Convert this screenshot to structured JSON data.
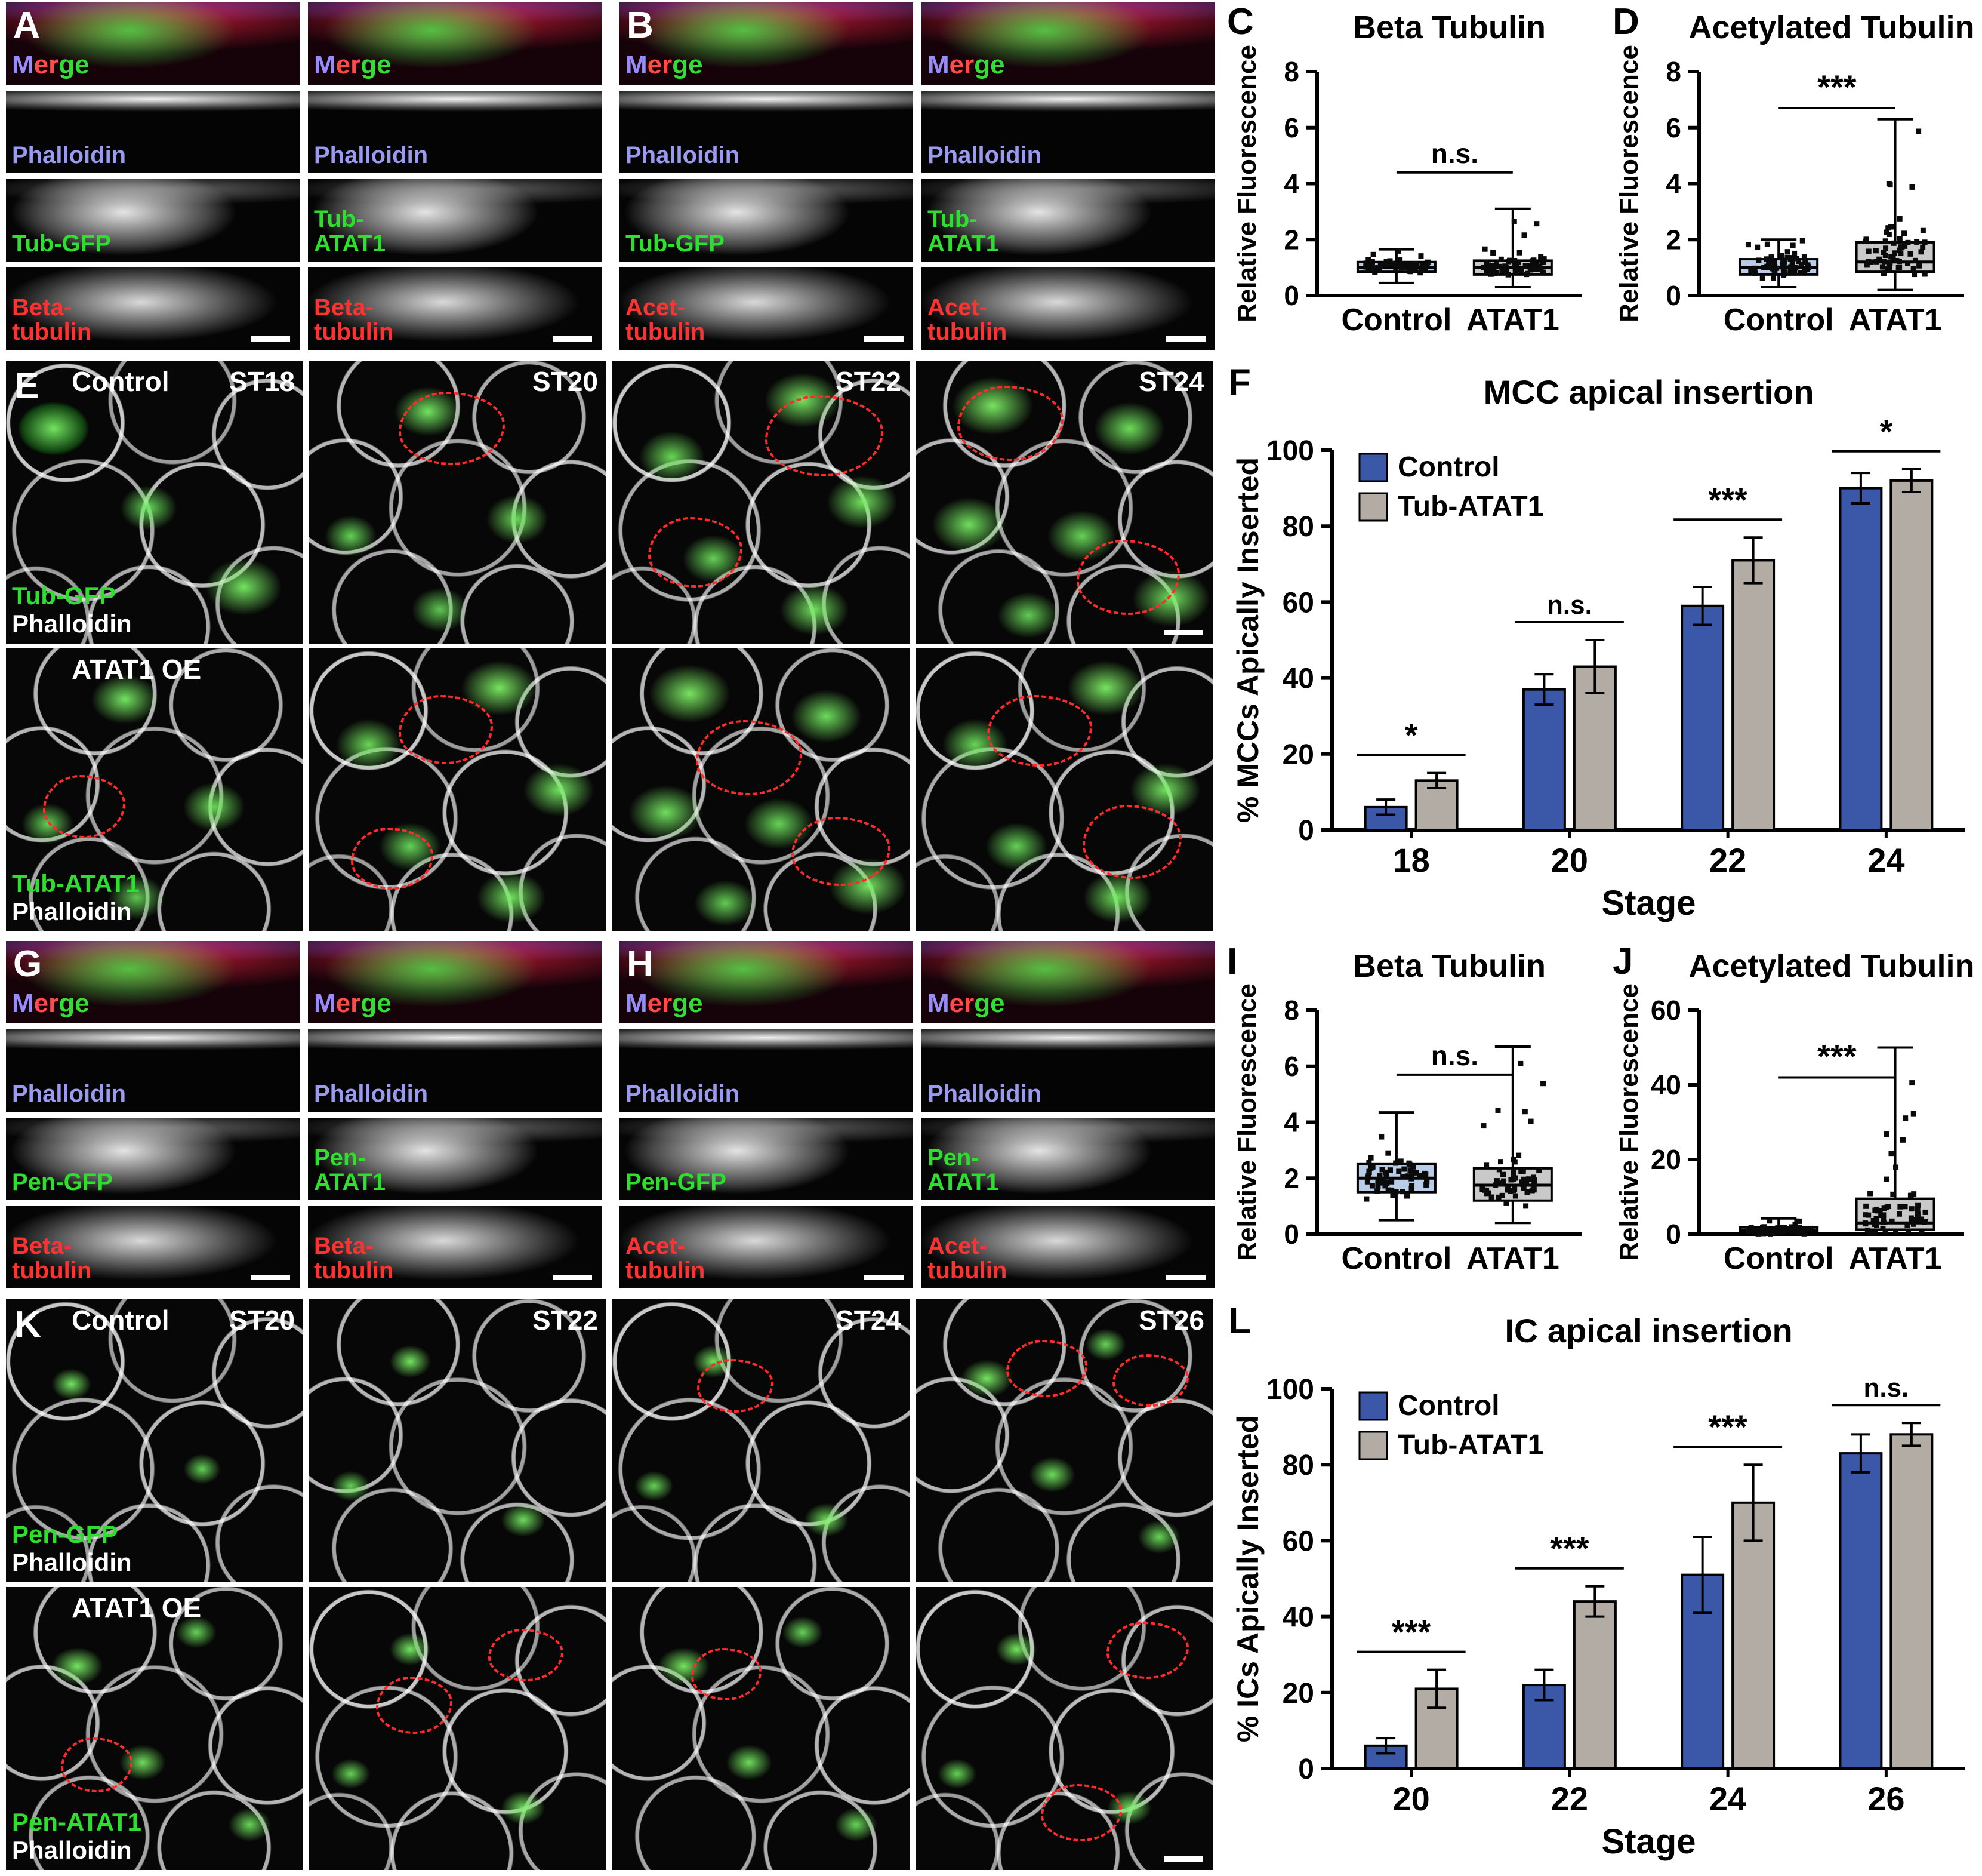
{
  "labels": {
    "merge_parts": [
      "M",
      "er",
      "ge"
    ],
    "phalloidin": "Phalloidin"
  },
  "xz": [
    {
      "letter": "A",
      "cols": [
        {
          "phalloidin": "Phalloidin",
          "channel": "Tub-GFP",
          "marker": "Beta-\ntubulin"
        },
        {
          "phalloidin": "Phalloidin",
          "channel": "Tub-\nATAT1",
          "marker": "Beta-\ntubulin"
        }
      ]
    },
    {
      "letter": "B",
      "cols": [
        {
          "phalloidin": "Phalloidin",
          "channel": "Tub-GFP",
          "marker": "Acet-\ntubulin"
        },
        {
          "phalloidin": "Phalloidin",
          "channel": "Tub-\nATAT1",
          "marker": "Acet-\ntubulin"
        }
      ]
    },
    {
      "letter": "G",
      "cols": [
        {
          "phalloidin": "Phalloidin",
          "channel": "Pen-GFP",
          "marker": "Beta-\ntubulin"
        },
        {
          "phalloidin": "Phalloidin",
          "channel": "Pen-\nATAT1",
          "marker": "Beta-\ntubulin"
        }
      ]
    },
    {
      "letter": "H",
      "cols": [
        {
          "phalloidin": "Phalloidin",
          "channel": "Pen-GFP",
          "marker": "Acet-\ntubulin"
        },
        {
          "phalloidin": "Phalloidin",
          "channel": "Pen-\nATAT1",
          "marker": "Acet-\ntubulin"
        }
      ]
    }
  ],
  "surface": [
    {
      "letter": "E",
      "prefix": "Control",
      "stages": [
        "ST18",
        "ST20",
        "ST22",
        "ST24"
      ],
      "top_ch1": "Tub-GFP",
      "top_ch2": "Phalloidin",
      "oe": "ATAT1 OE",
      "bot_ch1": "Tub-ATAT1",
      "bot_ch2": "Phalloidin"
    },
    {
      "letter": "K",
      "prefix": "Control",
      "stages": [
        "ST20",
        "ST22",
        "ST24",
        "ST26"
      ],
      "top_ch1": "Pen-GFP",
      "top_ch2": "Phalloidin",
      "oe": "ATAT1 OE",
      "bot_ch1": "Pen-ATAT1",
      "bot_ch2": "Phalloidin"
    }
  ],
  "chart_data": [
    {
      "id": "C",
      "panel_letter": "C",
      "type": "box",
      "title": "Beta Tubulin",
      "ylabel": "Relative Fluorescence",
      "ylim": [
        0,
        8
      ],
      "yticks": [
        0,
        2,
        4,
        6,
        8
      ],
      "categories": [
        "Control",
        "ATAT1"
      ],
      "boxes": [
        {
          "name": "Control",
          "min": 0.45,
          "q1": 0.85,
          "median": 1.0,
          "q3": 1.2,
          "max": 1.65,
          "color": "#b9cde9"
        },
        {
          "name": "ATAT1",
          "min": 0.3,
          "q1": 0.75,
          "median": 1.0,
          "q3": 1.25,
          "max": 3.1,
          "color": "#c9c9c9"
        }
      ],
      "sig": {
        "label": "n.s.",
        "y": 4.4
      }
    },
    {
      "id": "D",
      "panel_letter": "D",
      "type": "box",
      "title": "Acetylated Tubulin",
      "ylabel": "Relative Fluorescence",
      "ylim": [
        0,
        8
      ],
      "yticks": [
        0,
        2,
        4,
        6,
        8
      ],
      "categories": [
        "Control",
        "ATAT1"
      ],
      "boxes": [
        {
          "name": "Control",
          "min": 0.3,
          "q1": 0.75,
          "median": 1.0,
          "q3": 1.3,
          "max": 2.0,
          "color": "#b9cde9"
        },
        {
          "name": "ATAT1",
          "min": 0.2,
          "q1": 0.85,
          "median": 1.2,
          "q3": 1.9,
          "max": 6.3,
          "color": "#c9c9c9"
        }
      ],
      "sig": {
        "label": "***",
        "y": 6.7
      }
    },
    {
      "id": "F",
      "panel_letter": "F",
      "type": "bar",
      "title": "MCC apical insertion",
      "ylabel": "% MCCs Apically Inserted",
      "xlabel": "Stage",
      "ylim": [
        0,
        100
      ],
      "yticks": [
        0,
        20,
        40,
        60,
        80,
        100
      ],
      "categories": [
        "18",
        "20",
        "22",
        "24"
      ],
      "series": [
        {
          "name": "Control",
          "color": "#3a57a8",
          "values": [
            6,
            37,
            59,
            90
          ],
          "errors": [
            2,
            4,
            5,
            4
          ]
        },
        {
          "name": "Tub-ATAT1",
          "color": "#b3aca4",
          "values": [
            13,
            43,
            71,
            92
          ],
          "errors": [
            2,
            7,
            6,
            3
          ]
        }
      ],
      "sig_labels": [
        "*",
        "n.s.",
        "***",
        "*"
      ],
      "legend_position": "top-left"
    },
    {
      "id": "I",
      "panel_letter": "I",
      "type": "box",
      "title": "Beta Tubulin",
      "ylabel": "Relative Fluorescence",
      "ylim": [
        0,
        8
      ],
      "yticks": [
        0,
        2,
        4,
        6,
        8
      ],
      "categories": [
        "Control",
        "ATAT1"
      ],
      "boxes": [
        {
          "name": "Control",
          "min": 0.5,
          "q1": 1.5,
          "median": 2.0,
          "q3": 2.5,
          "max": 4.35,
          "color": "#b9cde9"
        },
        {
          "name": "ATAT1",
          "min": 0.4,
          "q1": 1.2,
          "median": 1.75,
          "q3": 2.35,
          "max": 6.7,
          "color": "#c9c9c9"
        }
      ],
      "sig": {
        "label": "n.s.",
        "y": 5.7
      }
    },
    {
      "id": "J",
      "panel_letter": "J",
      "type": "box",
      "title": "Acetylated Tubulin",
      "ylabel": "Relative Fluorescence",
      "ylim": [
        0,
        60
      ],
      "yticks": [
        0,
        20,
        40,
        60
      ],
      "categories": [
        "Control",
        "ATAT1"
      ],
      "boxes": [
        {
          "name": "Control",
          "min": 0.1,
          "q1": 0.4,
          "median": 0.9,
          "q3": 1.8,
          "max": 4.2,
          "color": "#b9cde9"
        },
        {
          "name": "ATAT1",
          "min": 0.2,
          "q1": 1.2,
          "median": 3.0,
          "q3": 9.5,
          "max": 50,
          "color": "#c9c9c9"
        }
      ],
      "sig": {
        "label": "***",
        "y": 42
      }
    },
    {
      "id": "L",
      "panel_letter": "L",
      "type": "bar",
      "title": "IC apical insertion",
      "ylabel": "% ICs Apically Inserted",
      "xlabel": "Stage",
      "ylim": [
        0,
        100
      ],
      "yticks": [
        0,
        20,
        40,
        60,
        80,
        100
      ],
      "categories": [
        "20",
        "22",
        "24",
        "26"
      ],
      "series": [
        {
          "name": "Control",
          "color": "#3a57a8",
          "values": [
            6,
            22,
            51,
            83
          ],
          "errors": [
            2,
            4,
            10,
            5
          ]
        },
        {
          "name": "Tub-ATAT1",
          "color": "#b3aca4",
          "values": [
            21,
            44,
            70,
            88
          ],
          "errors": [
            5,
            4,
            10,
            3
          ]
        }
      ],
      "sig_labels": [
        "***",
        "***",
        "***",
        "n.s."
      ],
      "legend_position": "top-left"
    }
  ]
}
